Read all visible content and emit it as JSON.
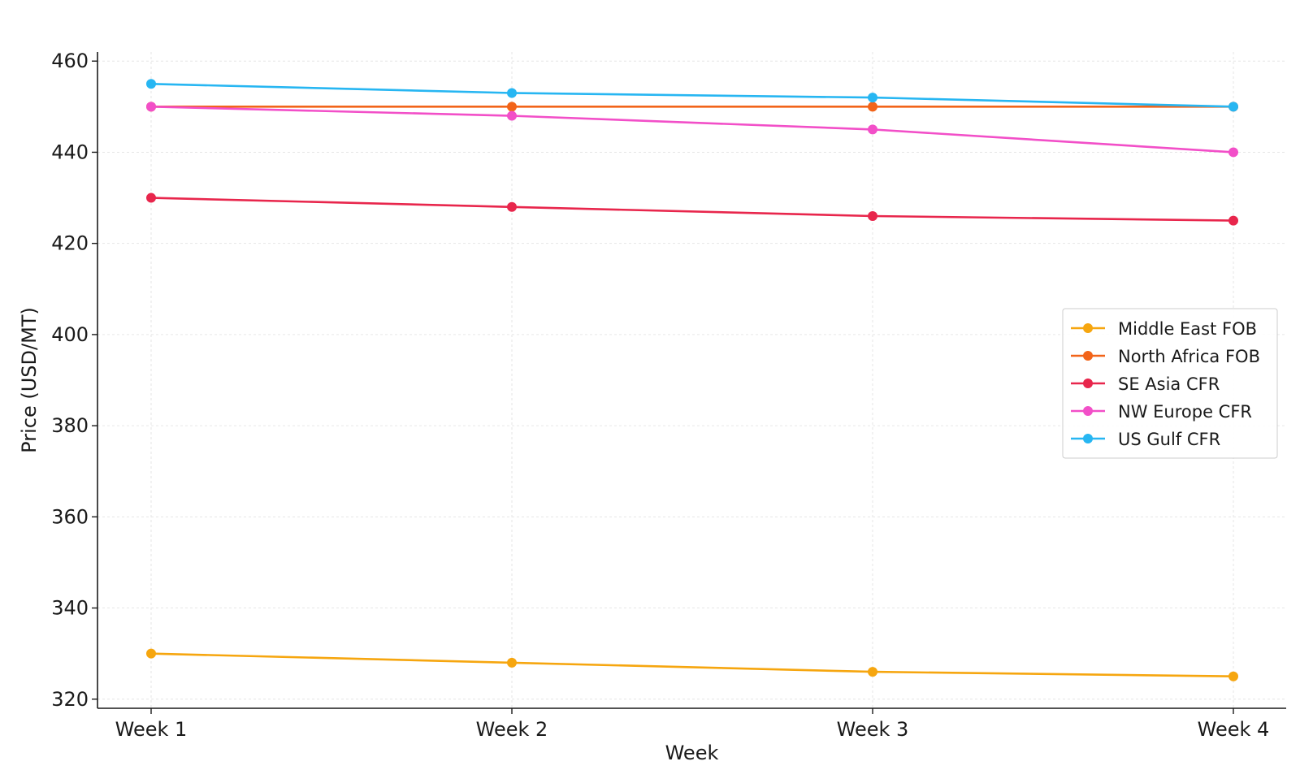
{
  "chart_data": {
    "type": "line",
    "title": "",
    "xlabel": "Week",
    "ylabel": "Price (USD/MT)",
    "categories": [
      "Week 1",
      "Week 2",
      "Week 3",
      "Week 4"
    ],
    "ylim": [
      318,
      462
    ],
    "yticks": [
      320,
      340,
      360,
      380,
      400,
      420,
      440,
      460
    ],
    "grid": true,
    "legend_position": "center-right",
    "series": [
      {
        "name": "Middle East FOB",
        "color": "#f6a60f",
        "values": [
          330,
          328,
          326,
          325
        ]
      },
      {
        "name": "North Africa FOB",
        "color": "#f26419",
        "values": [
          450,
          450,
          450,
          450
        ]
      },
      {
        "name": "SE Asia CFR",
        "color": "#e8264c",
        "values": [
          430,
          428,
          426,
          425
        ]
      },
      {
        "name": "NW Europe CFR",
        "color": "#f24fc8",
        "values": [
          450,
          448,
          445,
          440
        ]
      },
      {
        "name": "US Gulf CFR",
        "color": "#27b6f2",
        "values": [
          455,
          453,
          452,
          450
        ]
      }
    ]
  }
}
